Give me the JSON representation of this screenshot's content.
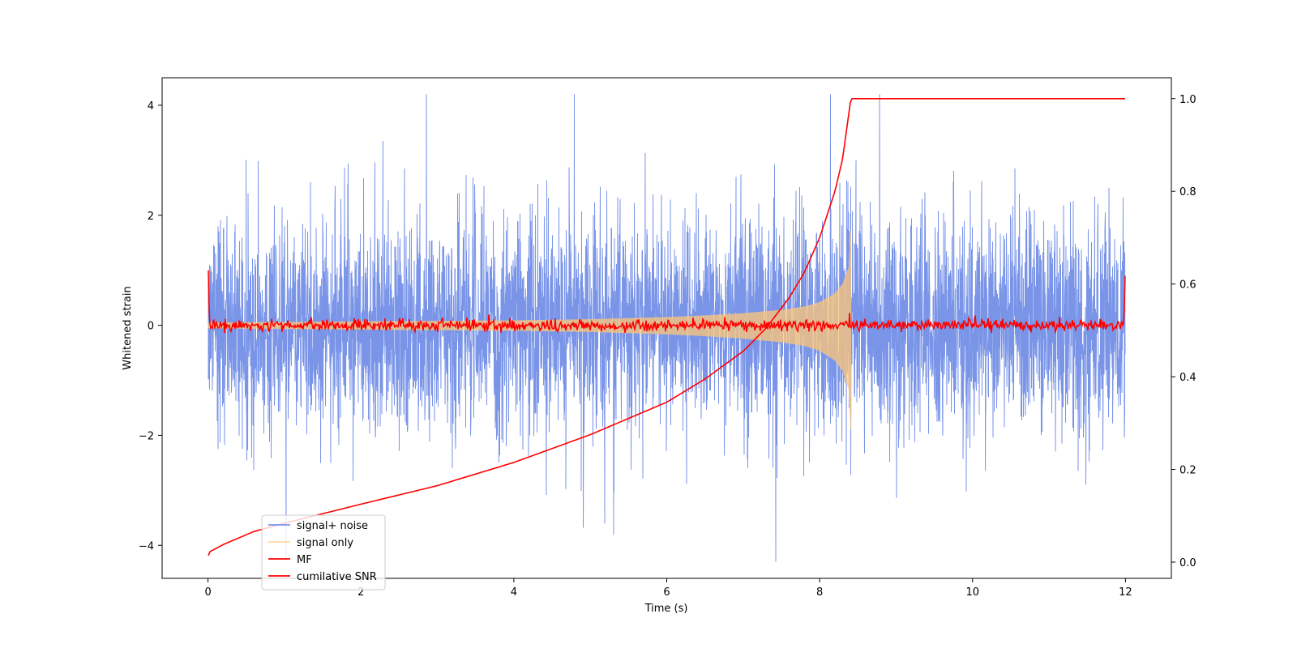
{
  "chart_data": {
    "type": "line",
    "title": "",
    "xlabel": "Time (s)",
    "ylabel": "Whitened strain",
    "ylabel_right": "",
    "xlim": [
      -0.6,
      12.6
    ],
    "ylim": [
      -4.6,
      4.5
    ],
    "ylim_right": [
      -0.035,
      1.045
    ],
    "x_ticks": [
      0,
      2,
      4,
      6,
      8,
      10,
      12
    ],
    "y_ticks": [
      -4,
      -2,
      0,
      2,
      4
    ],
    "y_ticks_right": [
      0.0,
      0.2,
      0.4,
      0.6,
      0.8,
      1.0
    ],
    "grid": false,
    "legend_position": "lower-left",
    "signal_duration": [
      0,
      12
    ],
    "merger_time": 8.41,
    "series": [
      {
        "name": "signal+ noise",
        "color": "#7a95e8",
        "axis": "left",
        "style": "gaussian noise plus signal, sigma about 0.9, peaks near ±4"
      },
      {
        "name": "signal only",
        "color": "#ffc777",
        "axis": "left",
        "envelope": {
          "x": [
            0,
            2,
            4,
            5,
            6,
            6.5,
            7,
            7.5,
            7.8,
            8.0,
            8.2,
            8.3,
            8.38,
            8.41
          ],
          "amplitude": [
            0.05,
            0.07,
            0.09,
            0.11,
            0.15,
            0.18,
            0.22,
            0.28,
            0.34,
            0.42,
            0.58,
            0.75,
            1.05,
            1.8
          ]
        }
      },
      {
        "name": "MF",
        "color": "#ff0000",
        "axis": "left",
        "style": "near-zero filter output, about ±0.2, edge spikes to about 1.0 at t=0 and 0.9 at t=12"
      },
      {
        "name": "cumilative SNR",
        "color": "#ff0000",
        "axis": "right",
        "x": [
          0,
          0.02,
          0.2,
          0.6,
          1,
          2,
          3,
          4,
          5,
          6,
          6.5,
          7,
          7.3,
          7.6,
          7.8,
          8.0,
          8.2,
          8.3,
          8.4,
          8.41,
          12
        ],
        "y": [
          0.012,
          0.022,
          0.038,
          0.066,
          0.084,
          0.125,
          0.165,
          0.215,
          0.275,
          0.345,
          0.395,
          0.455,
          0.505,
          0.57,
          0.625,
          0.7,
          0.8,
          0.87,
          0.99,
          1.0,
          1.0
        ]
      }
    ]
  }
}
